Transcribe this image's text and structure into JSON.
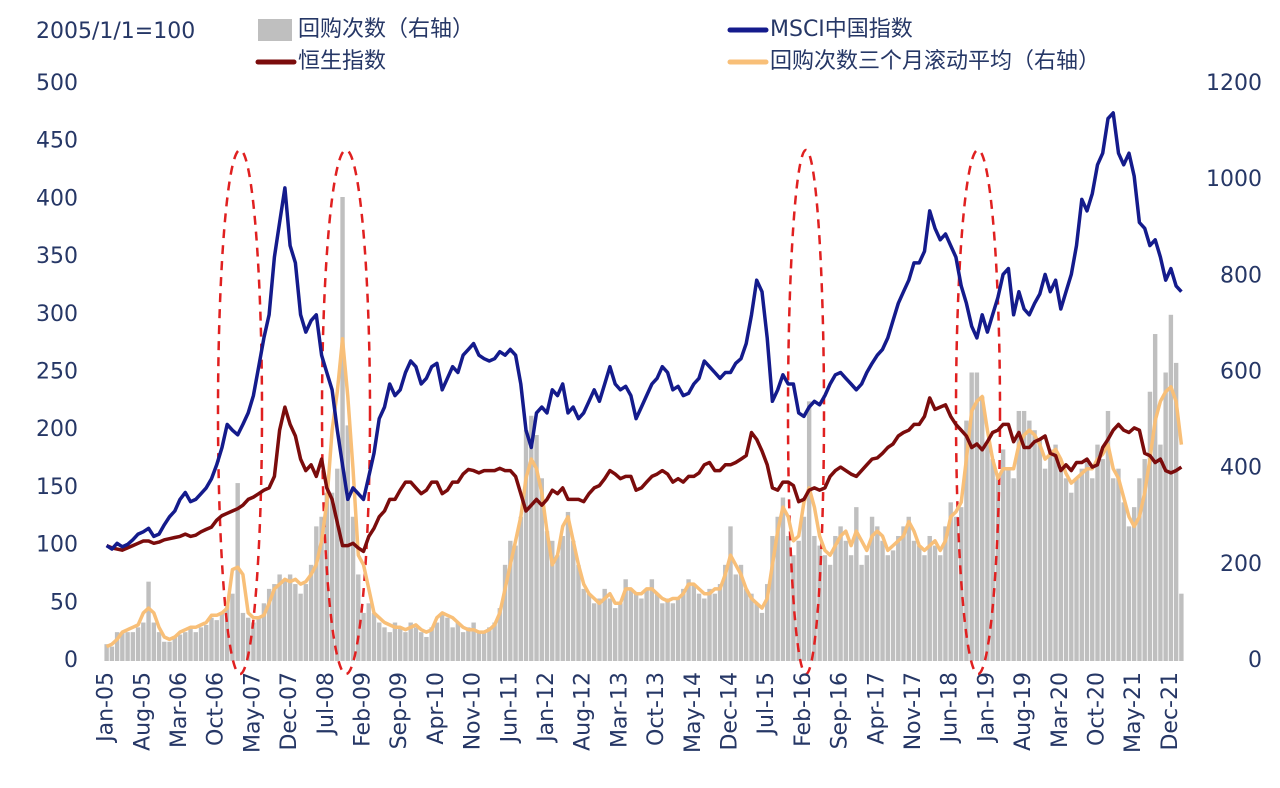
{
  "chart_data": {
    "type": "combo",
    "note_label": "2005/1/1=100",
    "categories": [
      "Jan-05",
      null,
      null,
      null,
      null,
      null,
      null,
      "Aug-05",
      null,
      null,
      null,
      null,
      null,
      null,
      "Mar-06",
      null,
      null,
      null,
      null,
      null,
      null,
      "Oct-06",
      null,
      null,
      null,
      null,
      null,
      null,
      "May-07",
      null,
      null,
      null,
      null,
      null,
      null,
      "Dec-07",
      null,
      null,
      null,
      null,
      null,
      null,
      "Jul-08",
      null,
      null,
      null,
      null,
      null,
      null,
      "Feb-09",
      null,
      null,
      null,
      null,
      null,
      null,
      "Sep-09",
      null,
      null,
      null,
      null,
      null,
      null,
      "Apr-10",
      null,
      null,
      null,
      null,
      null,
      null,
      "Nov-10",
      null,
      null,
      null,
      null,
      null,
      null,
      "Jun-11",
      null,
      null,
      null,
      null,
      null,
      null,
      "Jan-12",
      null,
      null,
      null,
      null,
      null,
      null,
      "Aug-12",
      null,
      null,
      null,
      null,
      null,
      null,
      "Mar-13",
      null,
      null,
      null,
      null,
      null,
      null,
      "Oct-13",
      null,
      null,
      null,
      null,
      null,
      null,
      "May-14",
      null,
      null,
      null,
      null,
      null,
      null,
      "Dec-14",
      null,
      null,
      null,
      null,
      null,
      null,
      "Jul-15",
      null,
      null,
      null,
      null,
      null,
      null,
      "Feb-16",
      null,
      null,
      null,
      null,
      null,
      null,
      "Sep-16",
      null,
      null,
      null,
      null,
      null,
      null,
      "Apr-17",
      null,
      null,
      null,
      null,
      null,
      null,
      "Nov-17",
      null,
      null,
      null,
      null,
      null,
      null,
      "Jun-18",
      null,
      null,
      null,
      null,
      null,
      null,
      "Jan-19",
      null,
      null,
      null,
      null,
      null,
      null,
      "Aug-19",
      null,
      null,
      null,
      null,
      null,
      null,
      "Mar-20",
      null,
      null,
      null,
      null,
      null,
      null,
      "Oct-20",
      null,
      null,
      null,
      null,
      null,
      null,
      "May-21",
      null,
      null,
      null,
      null,
      null,
      null,
      "Dec-21",
      null,
      null
    ],
    "series": [
      {
        "name": "回购次数（右轴）",
        "type": "bar",
        "axis": "y2",
        "color": "#bfbfbf",
        "values": [
          35,
          30,
          60,
          60,
          60,
          60,
          70,
          80,
          165,
          80,
          60,
          40,
          40,
          50,
          55,
          60,
          70,
          60,
          70,
          75,
          90,
          85,
          100,
          120,
          140,
          370,
          100,
          90,
          80,
          90,
          120,
          150,
          160,
          180,
          170,
          180,
          160,
          140,
          160,
          200,
          280,
          300,
          350,
          350,
          400,
          965,
          490,
          300,
          180,
          100,
          120,
          100,
          80,
          70,
          60,
          80,
          70,
          60,
          80,
          70,
          60,
          50,
          70,
          80,
          100,
          90,
          70,
          80,
          60,
          70,
          80,
          60,
          60,
          70,
          80,
          110,
          200,
          250,
          240,
          300,
          480,
          510,
          470,
          380,
          270,
          250,
          220,
          260,
          310,
          250,
          200,
          150,
          140,
          120,
          130,
          150,
          130,
          110,
          120,
          170,
          150,
          140,
          130,
          150,
          170,
          140,
          120,
          130,
          120,
          130,
          150,
          170,
          160,
          140,
          130,
          150,
          140,
          160,
          200,
          280,
          180,
          200,
          150,
          140,
          120,
          100,
          160,
          260,
          300,
          340,
          260,
          220,
          250,
          300,
          540,
          260,
          240,
          220,
          200,
          260,
          280,
          250,
          220,
          320,
          200,
          220,
          300,
          280,
          250,
          220,
          230,
          260,
          280,
          300,
          250,
          240,
          220,
          260,
          240,
          220,
          280,
          330,
          300,
          320,
          500,
          600,
          600,
          550,
          450,
          420,
          380,
          440,
          400,
          380,
          520,
          520,
          500,
          480,
          460,
          400,
          440,
          450,
          400,
          380,
          350,
          380,
          400,
          420,
          380,
          450,
          420,
          520,
          380,
          400,
          330,
          280,
          320,
          380,
          420,
          560,
          680,
          450,
          600,
          720,
          620,
          140
        ]
      },
      {
        "name": "MSCI中国指数",
        "type": "line",
        "color": "#141b8c",
        "values": [
          100,
          97,
          102,
          99,
          101,
          105,
          110,
          112,
          115,
          108,
          110,
          118,
          125,
          130,
          140,
          146,
          138,
          140,
          145,
          150,
          158,
          170,
          185,
          205,
          200,
          196,
          205,
          215,
          230,
          255,
          280,
          300,
          350,
          380,
          410,
          360,
          345,
          300,
          285,
          295,
          300,
          265,
          250,
          235,
          200,
          170,
          140,
          150,
          145,
          140,
          160,
          180,
          210,
          220,
          240,
          230,
          235,
          250,
          260,
          255,
          240,
          245,
          255,
          258,
          235,
          245,
          255,
          250,
          265,
          270,
          275,
          265,
          262,
          260,
          262,
          268,
          265,
          270,
          265,
          240,
          200,
          185,
          215,
          220,
          215,
          235,
          230,
          240,
          215,
          220,
          210,
          215,
          225,
          235,
          225,
          240,
          255,
          240,
          235,
          238,
          230,
          210,
          220,
          230,
          240,
          245,
          255,
          250,
          235,
          238,
          230,
          232,
          240,
          245,
          260,
          255,
          250,
          245,
          250,
          250,
          258,
          262,
          275,
          300,
          330,
          320,
          280,
          225,
          235,
          248,
          240,
          240,
          215,
          212,
          220,
          225,
          222,
          230,
          240,
          248,
          250,
          245,
          240,
          235,
          240,
          250,
          258,
          265,
          270,
          280,
          295,
          310,
          320,
          330,
          345,
          345,
          355,
          390,
          375,
          365,
          370,
          360,
          350,
          325,
          310,
          290,
          280,
          300,
          285,
          300,
          315,
          335,
          340,
          300,
          320,
          305,
          300,
          310,
          318,
          335,
          320,
          330,
          305,
          320,
          335,
          360,
          400,
          390,
          405,
          430,
          440,
          470,
          475,
          440,
          430,
          440,
          420,
          380,
          375,
          360,
          365,
          350,
          330,
          340,
          325,
          320
        ]
      },
      {
        "name": "恒生指数",
        "type": "line",
        "color": "#7b0c0c",
        "values": [
          100,
          98,
          97,
          96,
          98,
          100,
          102,
          104,
          104,
          102,
          103,
          105,
          106,
          107,
          108,
          110,
          108,
          109,
          112,
          114,
          116,
          122,
          126,
          128,
          130,
          132,
          135,
          140,
          142,
          145,
          148,
          150,
          160,
          200,
          220,
          205,
          195,
          175,
          165,
          170,
          160,
          175,
          150,
          140,
          120,
          100,
          100,
          102,
          98,
          95,
          108,
          115,
          125,
          130,
          140,
          140,
          148,
          155,
          155,
          150,
          145,
          148,
          155,
          155,
          145,
          148,
          155,
          155,
          162,
          166,
          165,
          163,
          165,
          165,
          165,
          167,
          165,
          165,
          160,
          145,
          130,
          135,
          140,
          135,
          140,
          148,
          145,
          150,
          140,
          140,
          140,
          138,
          145,
          150,
          152,
          158,
          165,
          162,
          158,
          160,
          160,
          148,
          150,
          155,
          160,
          162,
          165,
          162,
          155,
          158,
          155,
          160,
          160,
          163,
          170,
          172,
          165,
          165,
          170,
          170,
          172,
          175,
          178,
          198,
          192,
          182,
          170,
          150,
          148,
          155,
          155,
          152,
          138,
          140,
          148,
          150,
          148,
          150,
          160,
          165,
          168,
          165,
          162,
          160,
          165,
          170,
          175,
          176,
          180,
          185,
          188,
          195,
          198,
          200,
          205,
          205,
          212,
          228,
          218,
          220,
          222,
          212,
          205,
          200,
          195,
          185,
          188,
          183,
          190,
          198,
          200,
          205,
          205,
          190,
          198,
          185,
          185,
          190,
          192,
          195,
          180,
          178,
          165,
          170,
          165,
          172,
          172,
          175,
          168,
          170,
          185,
          192,
          200,
          205,
          200,
          198,
          202,
          200,
          180,
          178,
          172,
          175,
          165,
          163,
          165,
          168
        ]
      },
      {
        "name": "回购次数三个月滚动平均（右轴）",
        "type": "line",
        "axis": "y2",
        "color": "#f8bf78",
        "values": [
          30,
          35,
          45,
          60,
          65,
          70,
          75,
          100,
          110,
          100,
          70,
          50,
          45,
          50,
          60,
          65,
          70,
          70,
          75,
          80,
          95,
          95,
          100,
          110,
          190,
          195,
          180,
          100,
          90,
          90,
          95,
          120,
          150,
          160,
          170,
          165,
          170,
          160,
          165,
          180,
          200,
          250,
          330,
          480,
          560,
          670,
          550,
          400,
          220,
          200,
          150,
          100,
          90,
          80,
          75,
          70,
          70,
          65,
          70,
          75,
          65,
          60,
          65,
          90,
          100,
          95,
          90,
          80,
          70,
          65,
          65,
          60,
          60,
          65,
          75,
          100,
          150,
          200,
          250,
          300,
          380,
          420,
          400,
          350,
          270,
          200,
          220,
          280,
          300,
          250,
          200,
          160,
          140,
          130,
          120,
          130,
          140,
          120,
          120,
          150,
          150,
          140,
          140,
          150,
          150,
          140,
          130,
          125,
          130,
          130,
          140,
          160,
          160,
          150,
          140,
          140,
          150,
          150,
          180,
          220,
          200,
          180,
          150,
          130,
          120,
          110,
          130,
          200,
          270,
          320,
          300,
          250,
          260,
          330,
          360,
          320,
          260,
          230,
          220,
          240,
          260,
          270,
          240,
          270,
          250,
          230,
          260,
          270,
          260,
          230,
          240,
          250,
          260,
          290,
          270,
          240,
          230,
          240,
          250,
          230,
          250,
          300,
          310,
          330,
          420,
          520,
          540,
          550,
          480,
          420,
          380,
          400,
          400,
          400,
          450,
          470,
          480,
          470,
          450,
          420,
          430,
          440,
          420,
          390,
          370,
          380,
          390,
          400,
          400,
          420,
          430,
          450,
          400,
          380,
          340,
          300,
          280,
          300,
          350,
          420,
          500,
          540,
          560,
          570,
          540,
          450
        ]
      }
    ],
    "ylim": [
      0,
      500
    ],
    "yticks": [
      0,
      50,
      100,
      150,
      200,
      250,
      300,
      350,
      400,
      450,
      500
    ],
    "y2lim": [
      0,
      1200
    ],
    "y2ticks": [
      0,
      200,
      400,
      600,
      800,
      1000,
      1200
    ]
  }
}
